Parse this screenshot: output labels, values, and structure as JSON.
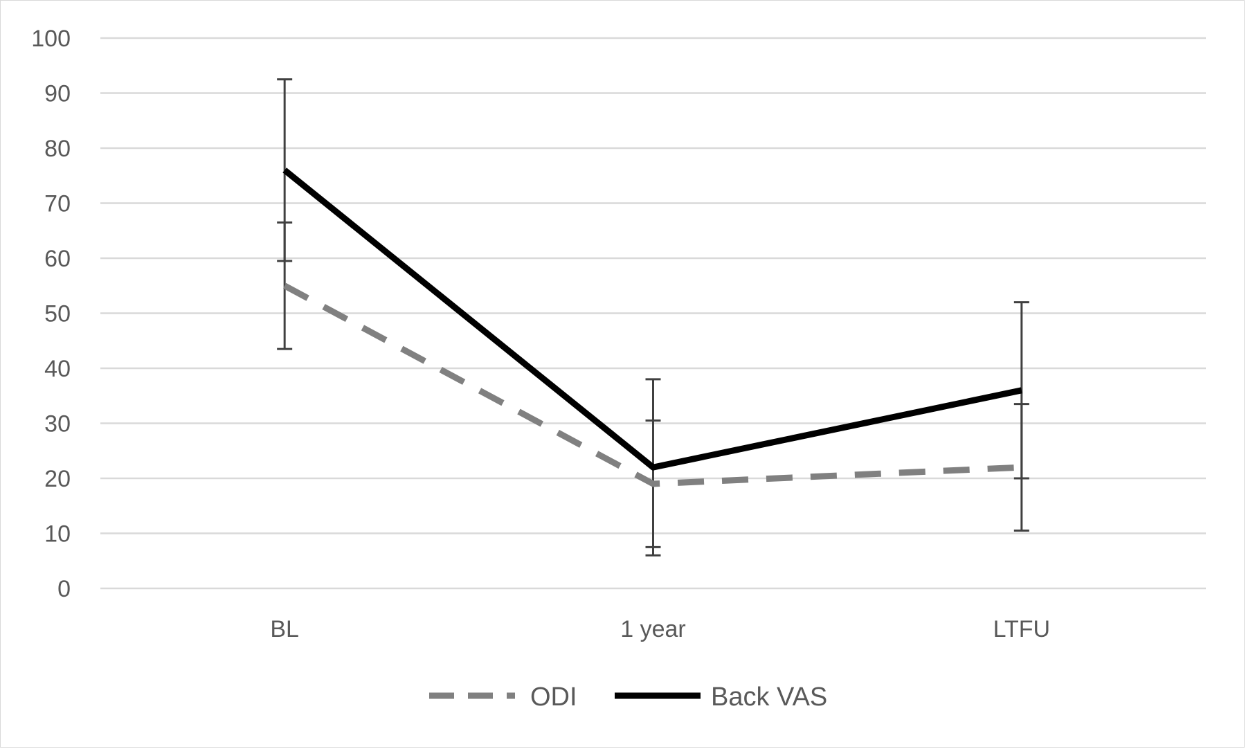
{
  "chart_data": {
    "type": "line",
    "title": "",
    "xlabel": "",
    "ylabel": "",
    "categories": [
      "BL",
      "1 year",
      "LTFU"
    ],
    "ylim": [
      0,
      100
    ],
    "yticks": [
      0,
      10,
      20,
      30,
      40,
      50,
      60,
      70,
      80,
      90,
      100
    ],
    "grid": true,
    "legend_position": "bottom",
    "series": [
      {
        "name": "ODI",
        "style": "dashed",
        "color": "#808080",
        "values": [
          55,
          19,
          22
        ],
        "error_low": [
          43.5,
          7.5,
          10.5
        ],
        "error_high": [
          66.5,
          30.5,
          33.5
        ]
      },
      {
        "name": "Back VAS",
        "style": "solid",
        "color": "#000000",
        "values": [
          76,
          22,
          36
        ],
        "error_low": [
          59.5,
          6,
          20
        ],
        "error_high": [
          92.5,
          38,
          52
        ]
      }
    ]
  }
}
